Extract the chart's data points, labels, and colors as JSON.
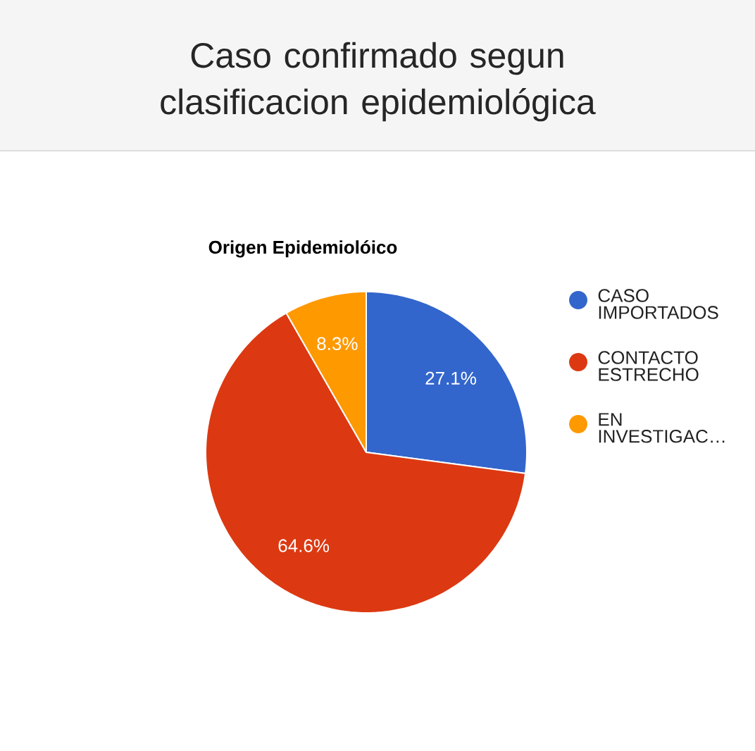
{
  "chart_data": {
    "type": "pie",
    "title": "Caso confirmado segun clasificacion epidemiológica",
    "subtitle": "Origen Epidemiolóico",
    "categories": [
      "CASO IMPORTADOS",
      "CONTACTO ESTRECHO",
      "EN INVESTIGAC…"
    ],
    "values": [
      27.1,
      64.6,
      8.3
    ],
    "colors": [
      "#3366cc",
      "#dc3912",
      "#ff9900"
    ],
    "value_labels": [
      "27.1%",
      "64.6%",
      "8.3%"
    ],
    "legend": "right"
  }
}
